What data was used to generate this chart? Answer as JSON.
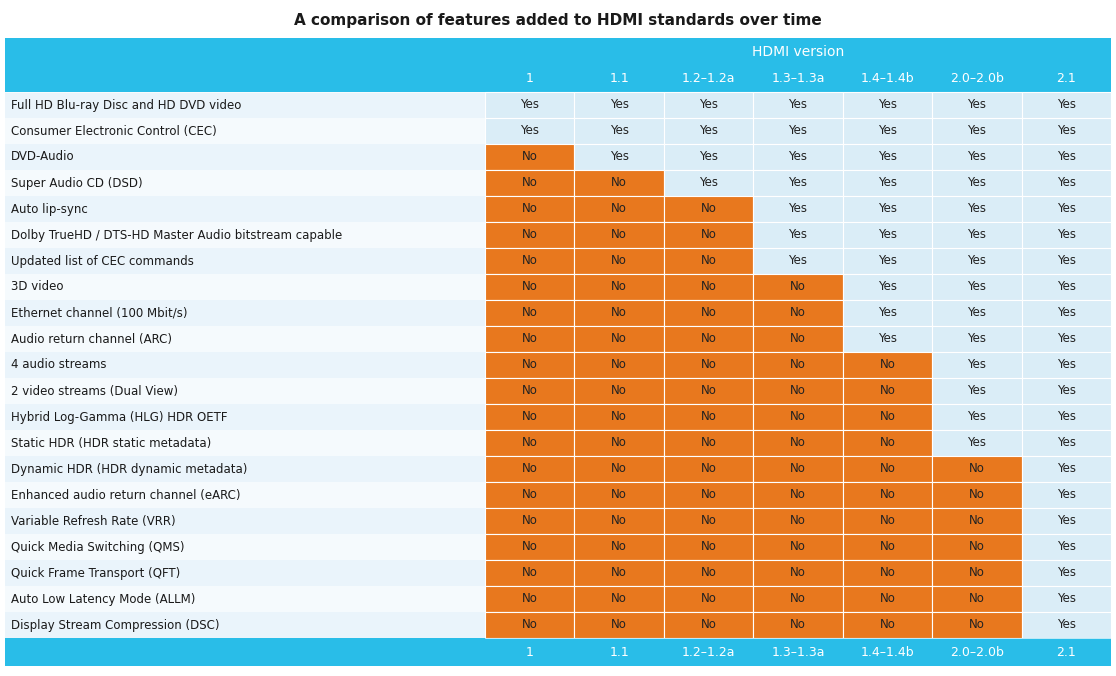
{
  "title": "A comparison of features added to HDMI standards over time",
  "header_label": "HDMI version",
  "versions": [
    "1",
    "1.1",
    "1.2–1.2a",
    "1.3–1.3a",
    "1.4–1.4b",
    "2.0–2.0b",
    "2.1"
  ],
  "features": [
    "Full HD Blu-ray Disc and HD DVD video",
    "Consumer Electronic Control (CEC)",
    "DVD-Audio",
    "Super Audio CD (DSD)",
    "Auto lip-sync",
    "Dolby TrueHD / DTS-HD Master Audio bitstream capable",
    "Updated list of CEC commands",
    "3D video",
    "Ethernet channel (100 Mbit/s)",
    "Audio return channel (ARC)",
    "4 audio streams",
    "2 video streams (Dual View)",
    "Hybrid Log-Gamma (HLG) HDR OETF",
    "Static HDR (HDR static metadata)",
    "Dynamic HDR (HDR dynamic metadata)",
    "Enhanced audio return channel (eARC)",
    "Variable Refresh Rate (VRR)",
    "Quick Media Switching (QMS)",
    "Quick Frame Transport (QFT)",
    "Auto Low Latency Mode (ALLM)",
    "Display Stream Compression (DSC)"
  ],
  "data": [
    [
      1,
      1,
      1,
      1,
      1,
      1,
      1
    ],
    [
      1,
      1,
      1,
      1,
      1,
      1,
      1
    ],
    [
      0,
      1,
      1,
      1,
      1,
      1,
      1
    ],
    [
      0,
      0,
      1,
      1,
      1,
      1,
      1
    ],
    [
      0,
      0,
      0,
      1,
      1,
      1,
      1
    ],
    [
      0,
      0,
      0,
      1,
      1,
      1,
      1
    ],
    [
      0,
      0,
      0,
      1,
      1,
      1,
      1
    ],
    [
      0,
      0,
      0,
      0,
      1,
      1,
      1
    ],
    [
      0,
      0,
      0,
      0,
      1,
      1,
      1
    ],
    [
      0,
      0,
      0,
      0,
      1,
      1,
      1
    ],
    [
      0,
      0,
      0,
      0,
      0,
      1,
      1
    ],
    [
      0,
      0,
      0,
      0,
      0,
      1,
      1
    ],
    [
      0,
      0,
      0,
      0,
      0,
      1,
      1
    ],
    [
      0,
      0,
      0,
      0,
      0,
      1,
      1
    ],
    [
      0,
      0,
      0,
      0,
      0,
      0,
      1
    ],
    [
      0,
      0,
      0,
      0,
      0,
      0,
      1
    ],
    [
      0,
      0,
      0,
      0,
      0,
      0,
      1
    ],
    [
      0,
      0,
      0,
      0,
      0,
      0,
      1
    ],
    [
      0,
      0,
      0,
      0,
      0,
      0,
      1
    ],
    [
      0,
      0,
      0,
      0,
      0,
      0,
      1
    ],
    [
      0,
      0,
      0,
      0,
      0,
      0,
      1
    ]
  ],
  "yes_color": "#daedf7",
  "no_color": "#e8781e",
  "header_bg": "#29bde8",
  "header_text": "#ffffff",
  "row_label_color": "#1a1a1a",
  "cell_text_color": "#222222",
  "title_color": "#1a1a1a",
  "footer_bg": "#29bde8",
  "footer_text": "#ffffff",
  "row_even_bg": "#eaf4fb",
  "row_odd_bg": "#f5fafd",
  "label_area_bg": "#f0f6fb"
}
